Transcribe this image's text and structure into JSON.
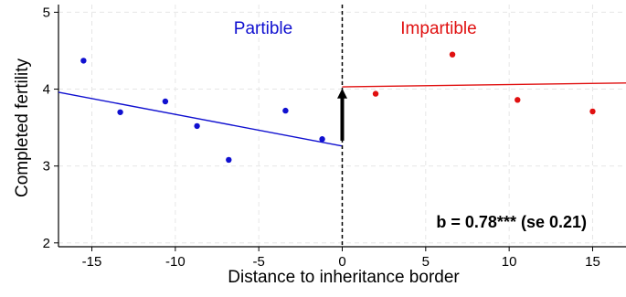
{
  "chart_data": {
    "type": "scatter",
    "title": "",
    "xlabel": "Distance to inheritance border",
    "ylabel": "Completed fertility",
    "xlim": [
      -17,
      17
    ],
    "ylim": [
      1.95,
      5.1
    ],
    "x_ticks": [
      -15,
      -10,
      -5,
      0,
      5,
      10,
      15
    ],
    "x_tick_labels": [
      "-15",
      "-10",
      "-5",
      "0",
      "5",
      "10",
      "15"
    ],
    "y_ticks": [
      2,
      3,
      4,
      5
    ],
    "y_tick_labels": [
      "2",
      "3",
      "4",
      "5"
    ],
    "grid": true,
    "cutoff_x": 0,
    "series": [
      {
        "name": "Partible",
        "color": "#1010d0",
        "points": [
          {
            "x": -15.5,
            "y": 4.37
          },
          {
            "x": -13.3,
            "y": 3.7
          },
          {
            "x": -10.6,
            "y": 3.84
          },
          {
            "x": -8.7,
            "y": 3.52
          },
          {
            "x": -6.8,
            "y": 3.08
          },
          {
            "x": -3.4,
            "y": 3.72
          },
          {
            "x": -1.2,
            "y": 3.35
          }
        ],
        "fit": {
          "x": [
            -17,
            0
          ],
          "y": [
            3.96,
            3.26
          ]
        }
      },
      {
        "name": "Impartible",
        "color": "#e01010",
        "points": [
          {
            "x": 2.0,
            "y": 3.94
          },
          {
            "x": 6.6,
            "y": 4.45
          },
          {
            "x": 10.5,
            "y": 3.86
          },
          {
            "x": 15.0,
            "y": 3.71
          }
        ],
        "fit": {
          "x": [
            0,
            17
          ],
          "y": [
            4.03,
            4.08
          ]
        }
      }
    ],
    "arrow": {
      "x": 0,
      "y_from": 3.33,
      "y_to": 4.01,
      "color": "#000000"
    },
    "annotation": "b = 0.78*** (se 0.21)"
  }
}
